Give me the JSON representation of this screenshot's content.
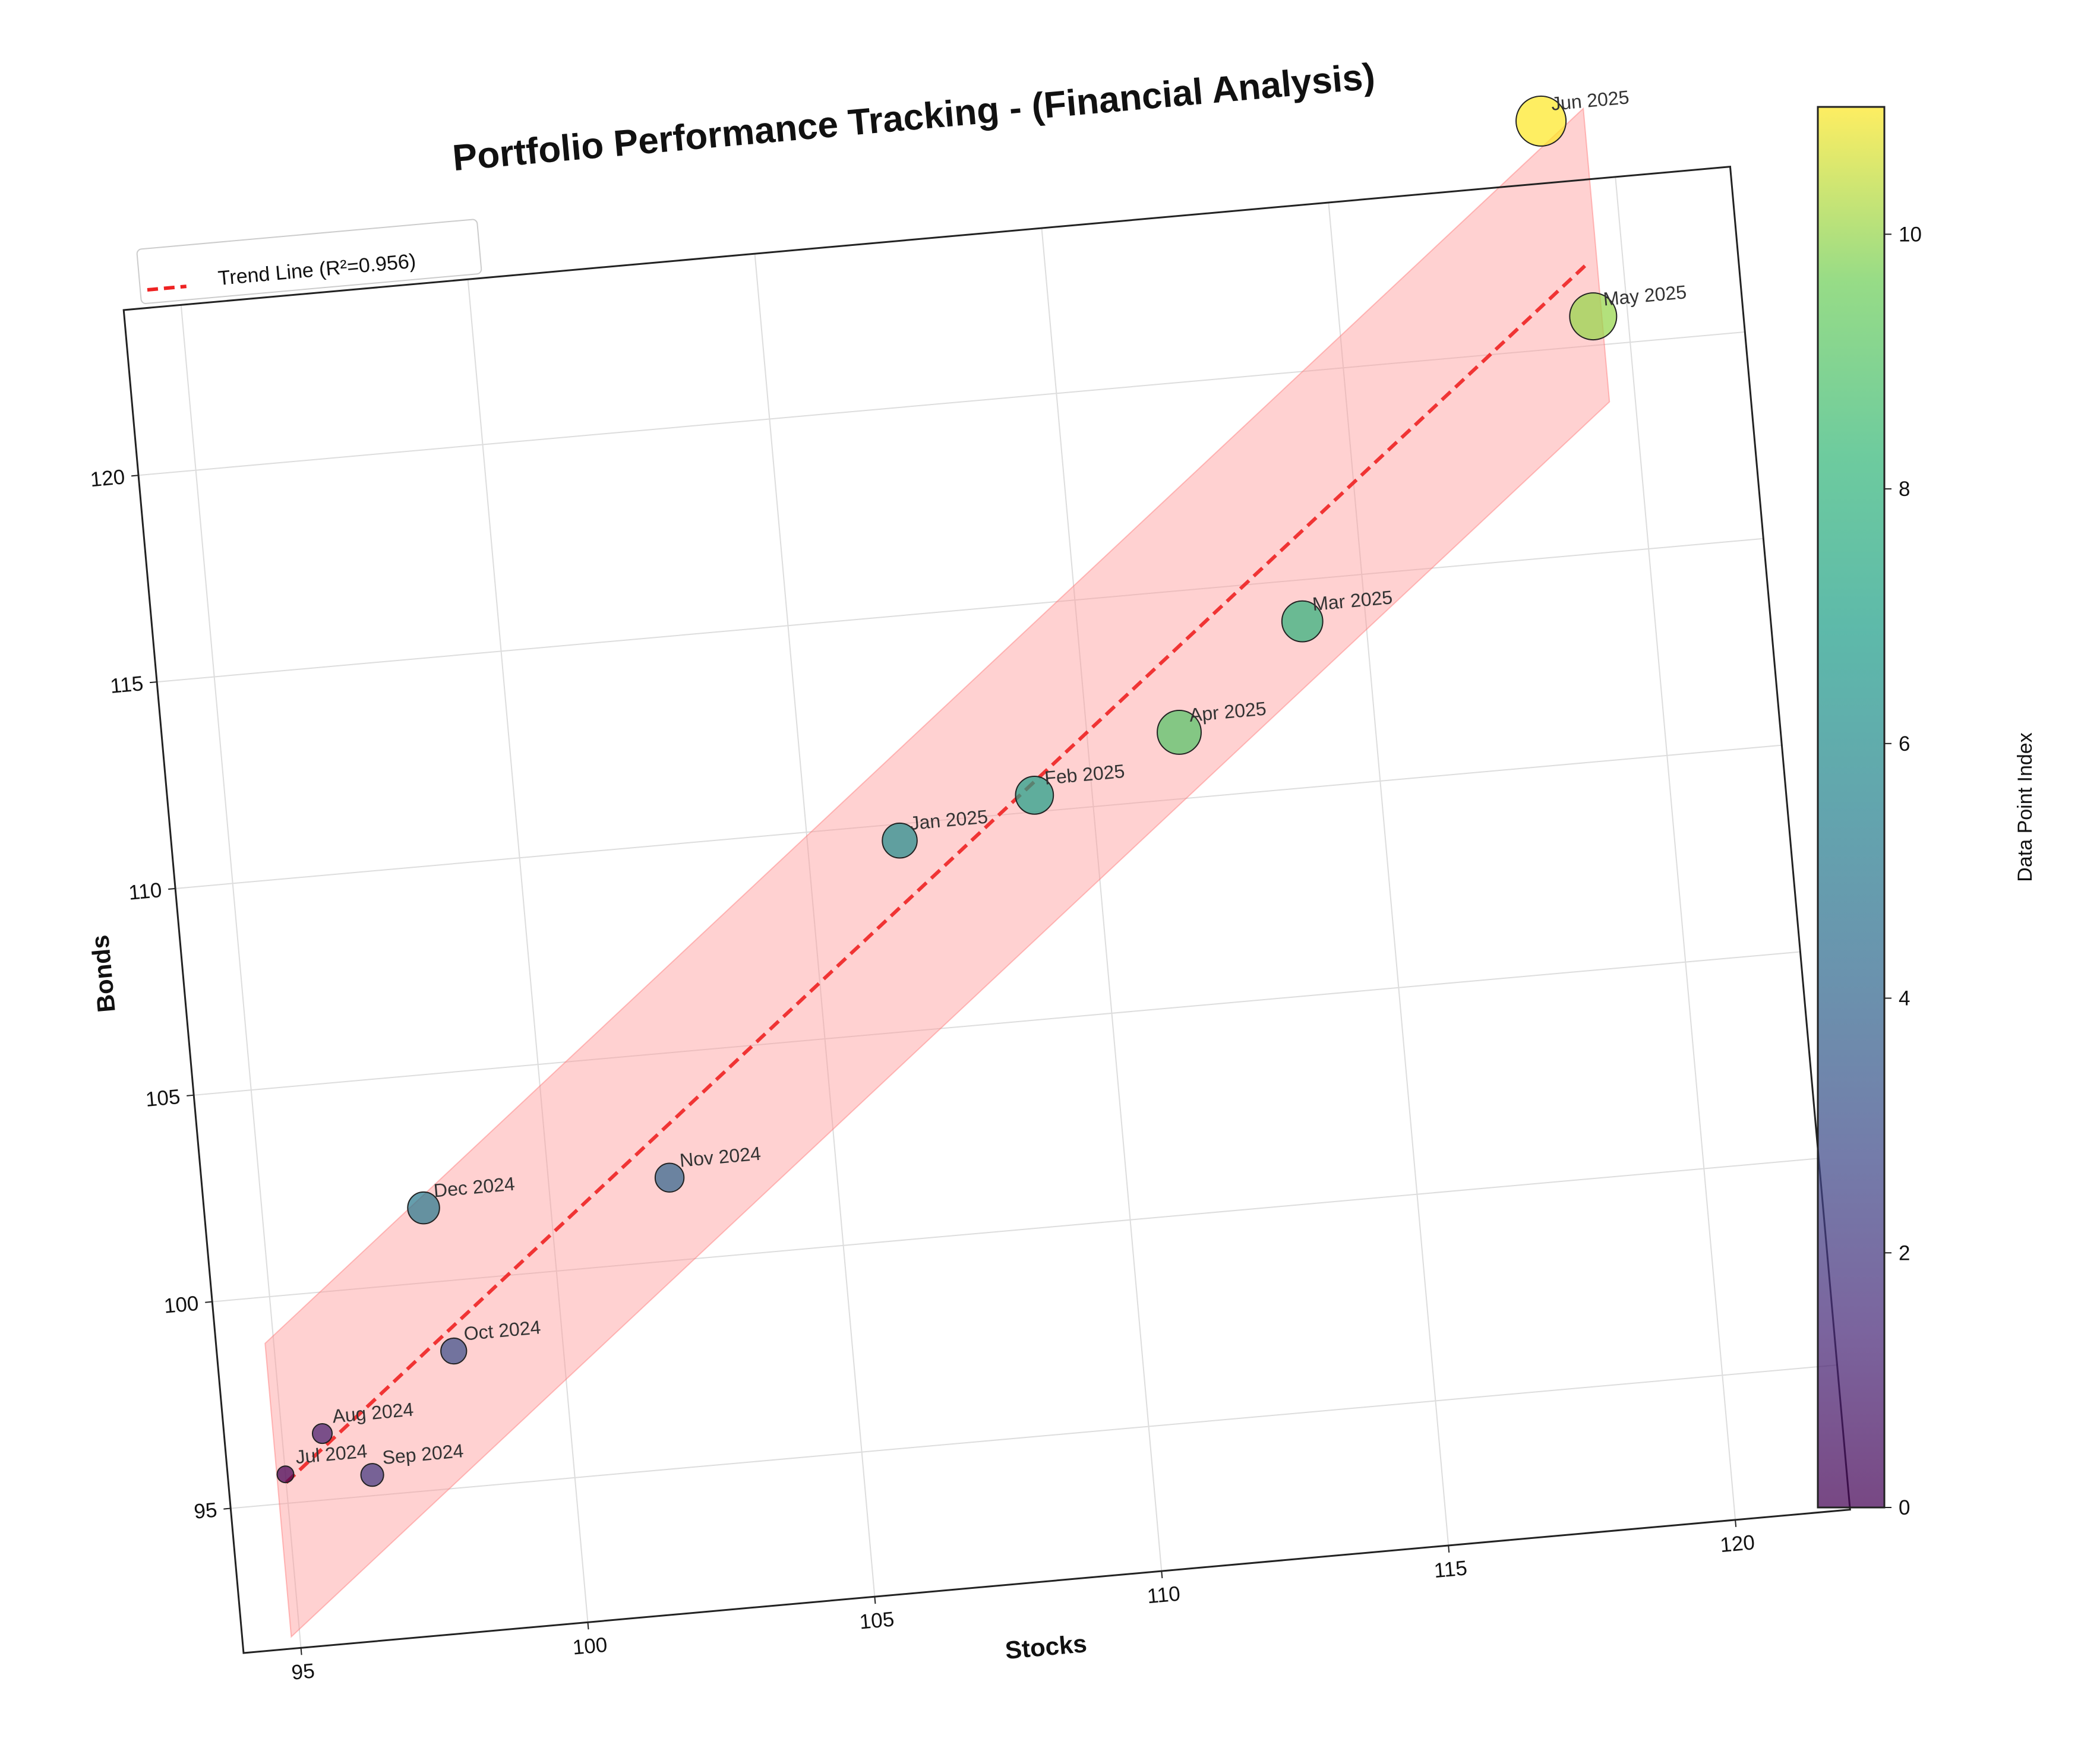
{
  "chart_data": {
    "type": "scatter",
    "title": "Portfolio Performance Tracking - (Financial Analysis)",
    "xlabel": "Stocks",
    "ylabel": "Bonds",
    "xlim": [
      94,
      122
    ],
    "ylim": [
      91.5,
      124
    ],
    "x_ticks": [
      95,
      100,
      105,
      110,
      115,
      120
    ],
    "y_ticks": [
      95,
      100,
      105,
      110,
      115,
      120
    ],
    "grid": true,
    "points": [
      {
        "label": "Jul 2024",
        "x": 95.0,
        "y": 95.7,
        "index": 0
      },
      {
        "label": "Aug 2024",
        "x": 95.7,
        "y": 96.6,
        "index": 1
      },
      {
        "label": "Sep 2024",
        "x": 96.5,
        "y": 95.5,
        "index": 2
      },
      {
        "label": "Oct 2024",
        "x": 98.1,
        "y": 98.3,
        "index": 3
      },
      {
        "label": "Nov 2024",
        "x": 102.1,
        "y": 102.0,
        "index": 4
      },
      {
        "label": "Dec 2024",
        "x": 97.8,
        "y": 101.8,
        "index": 5
      },
      {
        "label": "Jan 2025",
        "x": 106.6,
        "y": 109.6,
        "index": 6
      },
      {
        "label": "Feb 2025",
        "x": 109.0,
        "y": 110.4,
        "index": 7
      },
      {
        "label": "Mar 2025",
        "x": 113.9,
        "y": 114.0,
        "index": 8
      },
      {
        "label": "Apr 2025",
        "x": 111.6,
        "y": 111.6,
        "index": 9
      },
      {
        "label": "May 2025",
        "x": 119.4,
        "y": 120.7,
        "index": 10
      },
      {
        "label": "Jun 2025",
        "x": 118.8,
        "y": 125.5,
        "index": 11
      }
    ],
    "trend_line": {
      "label": "Trend Line (R²=0.956)",
      "x_start": 95.0,
      "y_start": 95.5,
      "x_end": 119.4,
      "y_end": 122.0,
      "band_halfwidth": 3.55,
      "color": "#ee2222",
      "band_color": "#ff9999"
    },
    "legend": {
      "entries": [
        "Trend Line (R²=0.956)"
      ],
      "placement": "upper-left"
    },
    "colorbar": {
      "label": "Data Point Index",
      "min": 0,
      "max": 11,
      "ticks": [
        0,
        2,
        4,
        6,
        8,
        10
      ],
      "colormap": "viridis"
    }
  }
}
